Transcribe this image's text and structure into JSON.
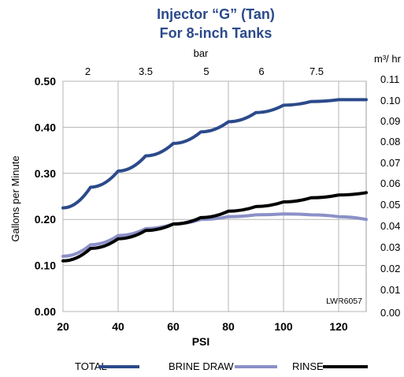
{
  "chart_data": {
    "type": "line",
    "title": "Injector “G” (Tan)",
    "subtitle": "For 8-inch Tanks",
    "xlabel": "PSI",
    "ylabel": "Gallons per Minute",
    "x_top_label": "bar",
    "y_right_label": "m³/ hr",
    "watermark": "LWR6057",
    "xlim": [
      20,
      130
    ],
    "ylim": [
      0,
      0.5
    ],
    "x_ticks": [
      "20",
      "40",
      "60",
      "80",
      "100",
      "120"
    ],
    "y_ticks_left": [
      "0.00",
      "0.10",
      "0.20",
      "0.30",
      "0.40",
      "0.50"
    ],
    "x_top_ticks": [
      "2",
      "3.5",
      "5",
      "6",
      "7.5"
    ],
    "y_right_ticks": [
      "0.00",
      "0.01",
      "0.02",
      "0.03",
      "0.04",
      "0.05",
      "0.06",
      "0.07",
      "0.08",
      "0.09",
      "0.10",
      "0.11"
    ],
    "grid": true,
    "legend_position": "bottom",
    "series": [
      {
        "name": "TOTAL",
        "color": "#2b4a8b",
        "x": [
          20,
          30,
          40,
          50,
          60,
          70,
          80,
          90,
          100,
          110,
          120,
          130
        ],
        "y": [
          0.225,
          0.27,
          0.305,
          0.338,
          0.365,
          0.39,
          0.412,
          0.432,
          0.448,
          0.456,
          0.46,
          0.46
        ]
      },
      {
        "name": "BRINE DRAW",
        "color": "#8b90c8",
        "x": [
          20,
          30,
          40,
          50,
          60,
          70,
          80,
          90,
          100,
          110,
          120,
          130
        ],
        "y": [
          0.12,
          0.145,
          0.165,
          0.18,
          0.19,
          0.2,
          0.206,
          0.21,
          0.212,
          0.21,
          0.206,
          0.2
        ]
      },
      {
        "name": "RINSE",
        "color": "#000000",
        "x": [
          20,
          30,
          40,
          50,
          60,
          70,
          80,
          90,
          100,
          110,
          120,
          130
        ],
        "y": [
          0.11,
          0.137,
          0.158,
          0.176,
          0.19,
          0.204,
          0.218,
          0.228,
          0.238,
          0.247,
          0.253,
          0.258
        ]
      }
    ]
  }
}
